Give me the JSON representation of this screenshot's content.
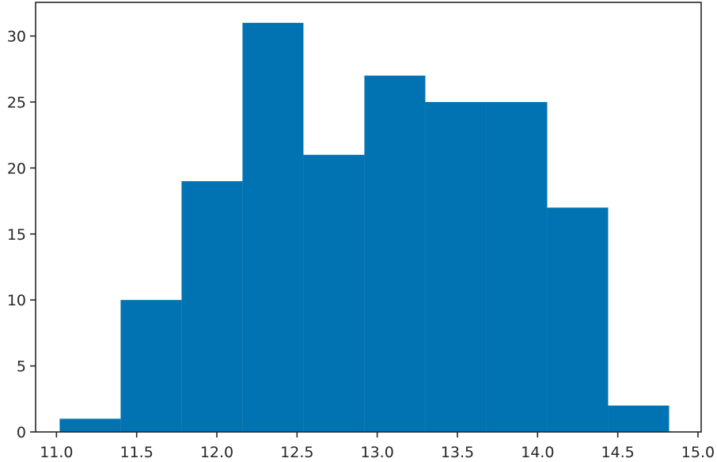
{
  "chart_data": {
    "type": "bar",
    "subtype": "histogram",
    "title": "",
    "xlabel": "",
    "ylabel": "",
    "bins": [
      {
        "x0": 11.02,
        "x1": 11.4,
        "count": 1
      },
      {
        "x0": 11.4,
        "x1": 11.78,
        "count": 10
      },
      {
        "x0": 11.78,
        "x1": 12.16,
        "count": 19
      },
      {
        "x0": 12.16,
        "x1": 12.54,
        "count": 31
      },
      {
        "x0": 12.54,
        "x1": 12.92,
        "count": 21
      },
      {
        "x0": 12.92,
        "x1": 13.3,
        "count": 27
      },
      {
        "x0": 13.3,
        "x1": 13.68,
        "count": 25
      },
      {
        "x0": 13.68,
        "x1": 14.06,
        "count": 25
      },
      {
        "x0": 14.06,
        "x1": 14.44,
        "count": 17
      },
      {
        "x0": 14.44,
        "x1": 14.82,
        "count": 2
      }
    ],
    "xlim": [
      10.87,
      15.02
    ],
    "ylim": [
      0,
      32.55
    ],
    "xticks": [
      11.0,
      11.5,
      12.0,
      12.5,
      13.0,
      13.5,
      14.0,
      14.5,
      15.0
    ],
    "xtick_labels": [
      "11.0",
      "11.5",
      "12.0",
      "12.5",
      "13.0",
      "13.5",
      "14.0",
      "14.5",
      "15.0"
    ],
    "yticks": [
      0,
      5,
      10,
      15,
      20,
      25,
      30
    ],
    "ytick_labels": [
      "0",
      "5",
      "10",
      "15",
      "20",
      "25",
      "30"
    ],
    "grid": false,
    "legend": "none",
    "colors": {
      "bar": "#0173b2",
      "axis": "#262626",
      "background": "#ffffff"
    }
  }
}
